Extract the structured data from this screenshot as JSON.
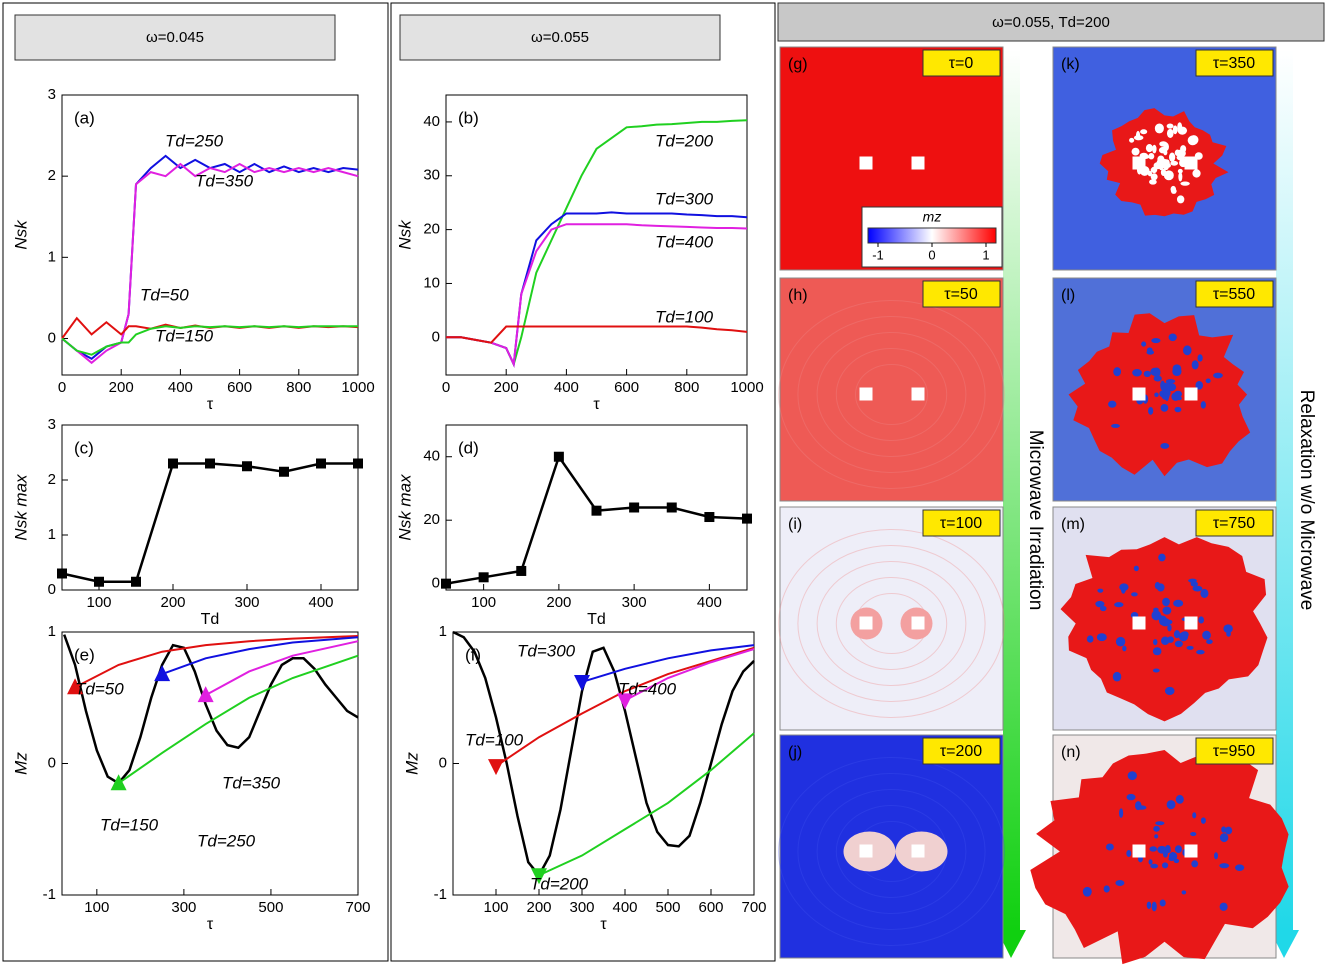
{
  "headers": [
    "ω=0.045",
    "ω=0.055",
    "ω=0.055, Td=200"
  ],
  "chart_data": [
    {
      "type": "line",
      "panel": "(a)",
      "xlabel": "τ",
      "ylabel": "Nsk",
      "x": [
        0,
        50,
        100,
        150,
        200,
        225,
        250,
        300,
        350,
        400,
        450,
        500,
        550,
        600,
        650,
        700,
        750,
        800,
        850,
        900,
        950,
        1000
      ],
      "xlim": [
        0,
        1000
      ],
      "xticks": [
        0,
        200,
        400,
        600,
        800,
        1000
      ],
      "ylim": [
        -0.45,
        3
      ],
      "yticks": [
        0,
        1,
        2,
        3
      ],
      "series": [
        {
          "name": "Td=250",
          "color": "#1010e0",
          "values": [
            0,
            -0.15,
            -0.25,
            -0.1,
            -0.05,
            0.3,
            1.9,
            2.1,
            2.25,
            2.1,
            2.2,
            2.1,
            2.15,
            2.05,
            2.15,
            2.05,
            2.12,
            2.05,
            2.1,
            2.05,
            2.1,
            2.08
          ]
        },
        {
          "name": "Td=350",
          "color": "#e020e0",
          "values": [
            0,
            -0.15,
            -0.3,
            -0.15,
            -0.05,
            0.3,
            1.9,
            2.05,
            2.0,
            2.15,
            2.0,
            2.1,
            2.05,
            2.15,
            2.05,
            2.1,
            2.05,
            2.1,
            2.05,
            2.1,
            2.05,
            2.0
          ]
        },
        {
          "name": "Td=50",
          "color": "#e01010",
          "values": [
            0,
            0.25,
            0.05,
            0.2,
            0.05,
            0.15,
            0.15,
            0.12,
            0.17,
            0.13,
            0.16,
            0.13,
            0.15,
            0.13,
            0.15,
            0.13,
            0.15,
            0.13,
            0.15,
            0.14,
            0.15,
            0.14
          ]
        },
        {
          "name": "Td=150",
          "color": "#20d020",
          "values": [
            0,
            -0.15,
            -0.2,
            -0.1,
            -0.05,
            -0.05,
            0.05,
            0.12,
            0.15,
            0.13,
            0.15,
            0.14,
            0.15,
            0.14,
            0.15,
            0.14,
            0.15,
            0.14,
            0.15,
            0.15,
            0.15,
            0.15
          ]
        }
      ]
    },
    {
      "type": "line",
      "panel": "(b)",
      "xlabel": "τ",
      "ylabel": "Nsk",
      "x": [
        0,
        50,
        100,
        150,
        200,
        225,
        250,
        300,
        350,
        400,
        450,
        500,
        550,
        600,
        650,
        700,
        750,
        800,
        850,
        900,
        950,
        1000
      ],
      "xlim": [
        0,
        1000
      ],
      "xticks": [
        0,
        200,
        400,
        600,
        800,
        1000
      ],
      "ylim": [
        -7,
        45
      ],
      "yticks": [
        0,
        10,
        20,
        30,
        40
      ],
      "series": [
        {
          "name": "Td=200",
          "color": "#20d020",
          "values": [
            0,
            0,
            -0.5,
            -1,
            -2,
            -5,
            0,
            12,
            18,
            24,
            30,
            35,
            37,
            39,
            39.2,
            39.5,
            39.6,
            39.8,
            40,
            40,
            40.2,
            40.3
          ]
        },
        {
          "name": "Td=300",
          "color": "#1010e0",
          "values": [
            0,
            0,
            -0.5,
            -1,
            -2,
            -5,
            8,
            18,
            21,
            23,
            23,
            23,
            23.2,
            23,
            23,
            23,
            23,
            22.8,
            22.7,
            22.5,
            22.5,
            22.3
          ]
        },
        {
          "name": "Td=400",
          "color": "#e020e0",
          "values": [
            0,
            0,
            -0.5,
            -1,
            -2,
            -5,
            8,
            16,
            20,
            21,
            21,
            21,
            21,
            21,
            20.8,
            20.7,
            20.6,
            20.5,
            20.4,
            20.3,
            20.3,
            20.2
          ]
        },
        {
          "name": "Td=100",
          "color": "#e01010",
          "values": [
            0,
            0,
            -0.5,
            -1,
            2,
            2,
            2,
            2,
            2,
            2,
            2,
            2,
            2,
            2,
            2,
            2,
            2,
            2,
            1.8,
            1.5,
            1.3,
            1
          ]
        }
      ]
    },
    {
      "type": "line",
      "panel": "(c)",
      "xlabel": "Td",
      "ylabel": "Nsk max",
      "marker": "square",
      "x": [
        50,
        100,
        150,
        200,
        250,
        300,
        350,
        400,
        450
      ],
      "xlim": [
        50,
        450
      ],
      "xticks": [
        100,
        200,
        300,
        400
      ],
      "ylim": [
        0,
        3
      ],
      "yticks": [
        0,
        1,
        2,
        3
      ],
      "series": [
        {
          "color": "#000000",
          "values": [
            0.3,
            0.15,
            0.15,
            2.3,
            2.3,
            2.25,
            2.15,
            2.3,
            2.3
          ]
        }
      ]
    },
    {
      "type": "line",
      "panel": "(d)",
      "xlabel": "Td",
      "ylabel": "Nsk max",
      "marker": "square",
      "x": [
        50,
        100,
        150,
        200,
        250,
        300,
        350,
        400,
        450
      ],
      "xlim": [
        50,
        450
      ],
      "xticks": [
        100,
        200,
        300,
        400
      ],
      "ylim": [
        -2,
        50
      ],
      "yticks": [
        0,
        20,
        40
      ],
      "series": [
        {
          "color": "#000000",
          "values": [
            0,
            2,
            4,
            40,
            23,
            24,
            24,
            21,
            20.5
          ]
        }
      ]
    },
    {
      "type": "line",
      "panel": "(e)",
      "xlabel": "τ",
      "ylabel": "Mz",
      "xlim": [
        20,
        700
      ],
      "xticks": [
        100,
        300,
        500,
        700
      ],
      "ylim": [
        -1,
        1
      ],
      "yticks": [
        -1,
        0,
        1
      ],
      "series": [
        {
          "color": "#000000",
          "x": [
            25,
            50,
            75,
            100,
            125,
            150,
            175,
            200,
            225,
            250,
            275,
            300,
            325,
            350,
            375,
            400,
            425,
            450,
            475,
            500,
            525,
            550,
            575,
            600,
            625,
            650,
            675,
            700
          ],
          "values": [
            0.98,
            0.75,
            0.4,
            0.1,
            -0.1,
            -0.15,
            -0.05,
            0.2,
            0.5,
            0.75,
            0.9,
            0.88,
            0.7,
            0.45,
            0.25,
            0.14,
            0.12,
            0.2,
            0.4,
            0.6,
            0.75,
            0.8,
            0.8,
            0.72,
            0.6,
            0.5,
            0.4,
            0.35
          ]
        },
        {
          "name": "Td=50",
          "color": "#e01010",
          "marker": "triangle-up",
          "x": [
            50,
            150,
            250,
            350,
            450,
            550,
            700
          ],
          "values": [
            0.58,
            0.75,
            0.85,
            0.9,
            0.93,
            0.95,
            0.97
          ]
        },
        {
          "name": "Td=250",
          "color": "#1010e0",
          "marker": "triangle-up",
          "x": [
            250,
            350,
            450,
            550,
            700
          ],
          "values": [
            0.68,
            0.8,
            0.87,
            0.92,
            0.96
          ]
        },
        {
          "name": "Td=350",
          "color": "#e020e0",
          "marker": "triangle-up",
          "x": [
            350,
            450,
            550,
            700
          ],
          "values": [
            0.52,
            0.7,
            0.82,
            0.93
          ]
        },
        {
          "name": "Td=150",
          "color": "#20d020",
          "marker": "triangle-up",
          "x": [
            150,
            250,
            350,
            450,
            550,
            700
          ],
          "values": [
            -0.15,
            0.08,
            0.3,
            0.5,
            0.65,
            0.82
          ]
        }
      ]
    },
    {
      "type": "line",
      "panel": "(f)",
      "xlabel": "τ",
      "ylabel": "Mz",
      "xlim": [
        0,
        700
      ],
      "xticks": [
        100,
        200,
        300,
        400,
        500,
        600,
        700
      ],
      "ylim": [
        -1,
        1
      ],
      "yticks": [
        -1,
        0,
        1
      ],
      "series": [
        {
          "color": "#000000",
          "x": [
            0,
            25,
            50,
            75,
            100,
            125,
            150,
            175,
            200,
            225,
            250,
            275,
            300,
            325,
            350,
            375,
            400,
            425,
            450,
            475,
            500,
            525,
            550,
            575,
            600,
            625,
            650,
            675,
            700
          ],
          "values": [
            1,
            0.96,
            0.85,
            0.65,
            0.35,
            0.0,
            -0.4,
            -0.75,
            -0.85,
            -0.7,
            -0.35,
            0.1,
            0.55,
            0.85,
            0.88,
            0.7,
            0.4,
            0.05,
            -0.3,
            -0.52,
            -0.62,
            -0.63,
            -0.55,
            -0.3,
            0.0,
            0.3,
            0.55,
            0.7,
            0.78
          ]
        },
        {
          "name": "Td=100",
          "color": "#e01010",
          "marker": "triangle-down",
          "x": [
            100,
            200,
            300,
            400,
            500,
            600,
            700
          ],
          "values": [
            -0.02,
            0.2,
            0.38,
            0.55,
            0.68,
            0.78,
            0.88
          ]
        },
        {
          "name": "Td=300",
          "color": "#1010e0",
          "marker": "triangle-down",
          "x": [
            300,
            400,
            500,
            600,
            700
          ],
          "values": [
            0.62,
            0.72,
            0.8,
            0.86,
            0.9
          ]
        },
        {
          "name": "Td=400",
          "color": "#e020e0",
          "marker": "triangle-down",
          "x": [
            400,
            500,
            600,
            700
          ],
          "values": [
            0.48,
            0.65,
            0.77,
            0.87
          ]
        },
        {
          "name": "Td=200",
          "color": "#20d020",
          "marker": "triangle-down",
          "x": [
            200,
            300,
            400,
            500,
            600,
            700
          ],
          "values": [
            -0.85,
            -0.7,
            -0.5,
            -0.3,
            -0.05,
            0.23
          ]
        }
      ]
    }
  ],
  "snapshots": [
    {
      "label": "(g)",
      "time": "τ=0"
    },
    {
      "label": "(h)",
      "time": "τ=50"
    },
    {
      "label": "(i)",
      "time": "τ=100"
    },
    {
      "label": "(j)",
      "time": "τ=200"
    },
    {
      "label": "(k)",
      "time": "τ=350"
    },
    {
      "label": "(l)",
      "time": "τ=550"
    },
    {
      "label": "(m)",
      "time": "τ=750"
    },
    {
      "label": "(n)",
      "time": "τ=950"
    }
  ],
  "colorbar": {
    "label": "mz",
    "ticks": [
      -1,
      0,
      1
    ]
  },
  "arrows": [
    "Microwave Irradiation",
    "Relaxation w/o Microwave"
  ]
}
